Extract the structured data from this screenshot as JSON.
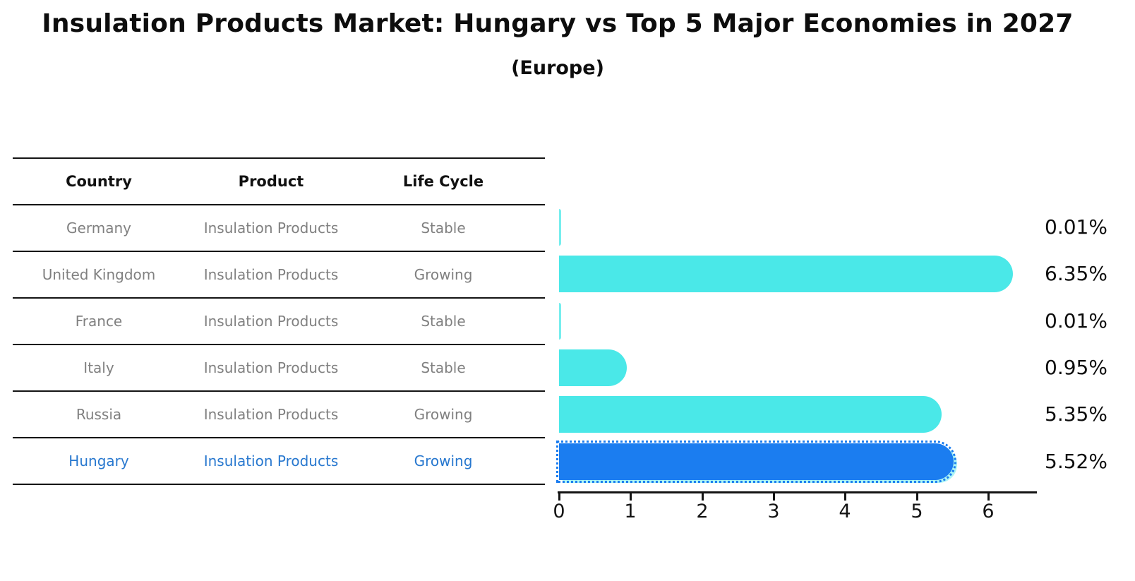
{
  "title": "Insulation Products Market: Hungary vs Top 5 Major Economies in 2027",
  "subtitle": "(Europe)",
  "table": {
    "headers": [
      "Country",
      "Product",
      "Life Cycle"
    ],
    "rows": [
      {
        "country": "Germany",
        "product": "Insulation Products",
        "life_cycle": "Stable",
        "highlighted": false
      },
      {
        "country": "United Kingdom",
        "product": "Insulation Products",
        "life_cycle": "Growing",
        "highlighted": false
      },
      {
        "country": "France",
        "product": "Insulation Products",
        "life_cycle": "Stable",
        "highlighted": false
      },
      {
        "country": "Italy",
        "product": "Insulation Products",
        "life_cycle": "Stable",
        "highlighted": false
      },
      {
        "country": "Russia",
        "product": "Insulation Products",
        "life_cycle": "Growing",
        "highlighted": false
      },
      {
        "country": "Hungary",
        "product": "Insulation Products",
        "life_cycle": "Growing",
        "highlighted": true
      }
    ]
  },
  "chart_data": {
    "type": "bar",
    "orientation": "horizontal",
    "title": "Insulation Products Market: Hungary vs Top 5 Major Economies in 2027",
    "subtitle": "(Europe)",
    "categories": [
      "Germany",
      "United Kingdom",
      "France",
      "Italy",
      "Russia",
      "Hungary"
    ],
    "values": [
      0.01,
      6.35,
      0.01,
      0.95,
      5.35,
      5.52
    ],
    "value_labels": [
      "0.01%",
      "6.35%",
      "0.01%",
      "0.95%",
      "5.35%",
      "5.52%"
    ],
    "xlabel": "",
    "ylabel": "",
    "xlim": [
      0,
      6.7
    ],
    "xticks": [
      0,
      1,
      2,
      3,
      4,
      5,
      6
    ],
    "grid": false,
    "legend": false,
    "highlight_category": "Hungary"
  },
  "colors": {
    "bar": "#4AE8E8",
    "highlight_bar": "#1B7DF0",
    "highlight_text": "#2878CF",
    "table_text": "#808080",
    "header_text": "#111111",
    "axis": "#141414"
  }
}
